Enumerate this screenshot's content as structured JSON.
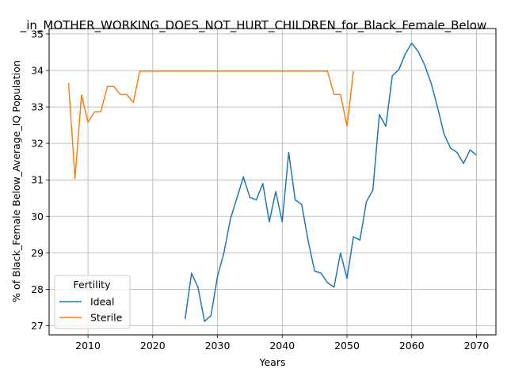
{
  "chart_data": {
    "type": "line",
    "title": "_in_MOTHER_WORKING_DOES_NOT_HURT_CHILDREN_for_Black_Female_Below",
    "xlabel": "Years",
    "ylabel": "% of Black_Female Below_Average_IQ Population",
    "xlim": [
      2004,
      2073
    ],
    "ylim": [
      26.75,
      35.15
    ],
    "xticks": [
      2010,
      2020,
      2030,
      2040,
      2050,
      2060,
      2070
    ],
    "yticks": [
      27,
      28,
      29,
      30,
      31,
      32,
      33,
      34,
      35
    ],
    "grid": true,
    "legend": {
      "title": "Fertility",
      "placement": "lower-left"
    },
    "series": [
      {
        "name": "Ideal",
        "color": "#1f77b4",
        "x": [
          2025,
          2026,
          2027,
          2028,
          2029,
          2030,
          2031,
          2032,
          2033,
          2034,
          2035,
          2036,
          2037,
          2038,
          2039,
          2040,
          2041,
          2042,
          2043,
          2044,
          2045,
          2046,
          2047,
          2048,
          2049,
          2050,
          2051,
          2052,
          2053,
          2054,
          2055,
          2056,
          2057,
          2058,
          2059,
          2060,
          2061,
          2062,
          2063,
          2064,
          2065,
          2066,
          2067,
          2068,
          2069,
          2070
        ],
        "y": [
          27.18,
          28.44,
          28.05,
          27.12,
          27.28,
          28.35,
          29.0,
          29.93,
          30.5,
          31.08,
          30.52,
          30.45,
          30.9,
          29.85,
          30.68,
          29.85,
          31.75,
          30.45,
          30.33,
          29.33,
          28.5,
          28.44,
          28.18,
          28.06,
          29.0,
          28.3,
          29.44,
          29.35,
          30.4,
          30.72,
          32.79,
          32.47,
          33.85,
          34.02,
          34.45,
          34.75,
          34.52,
          34.15,
          33.65,
          32.98,
          32.25,
          31.87,
          31.75,
          31.45,
          31.82,
          31.68
        ]
      },
      {
        "name": "Sterile",
        "color": "#ff7f0e",
        "x": [
          2007,
          2008,
          2009,
          2010,
          2011,
          2012,
          2013,
          2014,
          2015,
          2016,
          2017,
          2018,
          2019,
          2020,
          2025,
          2030,
          2035,
          2040,
          2045,
          2046,
          2047,
          2048,
          2049,
          2050,
          2051
        ],
        "y": [
          33.65,
          31.04,
          33.33,
          32.58,
          32.86,
          32.88,
          33.56,
          33.56,
          33.34,
          33.34,
          33.12,
          33.98,
          33.98,
          33.98,
          33.98,
          33.98,
          33.98,
          33.98,
          33.98,
          33.98,
          33.98,
          33.34,
          33.34,
          32.47,
          33.98
        ]
      }
    ]
  }
}
